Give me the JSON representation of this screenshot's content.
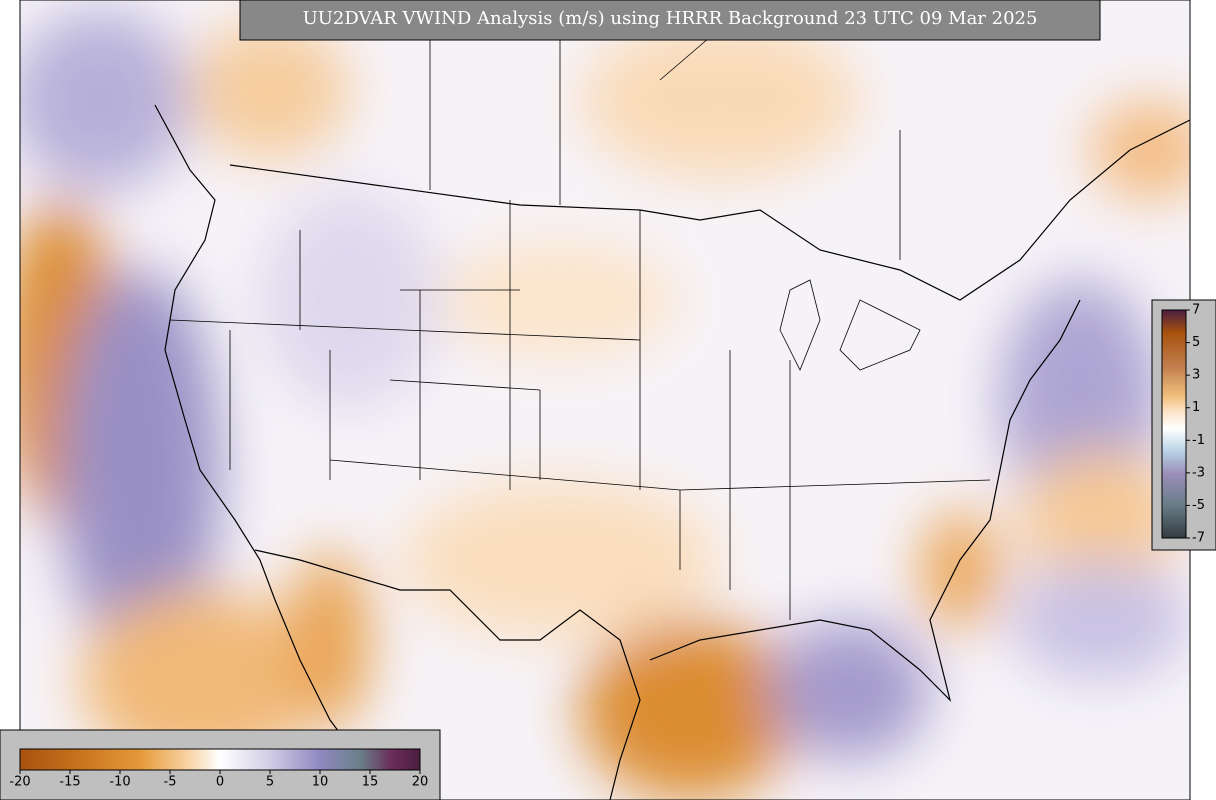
{
  "title": "UU2DVAR VWIND Analysis (m/s) using HRRR Background 23 UTC 09 Mar 2025",
  "colorbars": {
    "bottom": {
      "ticks": [
        -20,
        -15,
        -10,
        -5,
        0,
        5,
        10,
        15,
        20
      ]
    },
    "right": {
      "ticks": [
        7,
        5,
        3,
        1,
        -1,
        -3,
        -5,
        -7
      ]
    }
  }
}
